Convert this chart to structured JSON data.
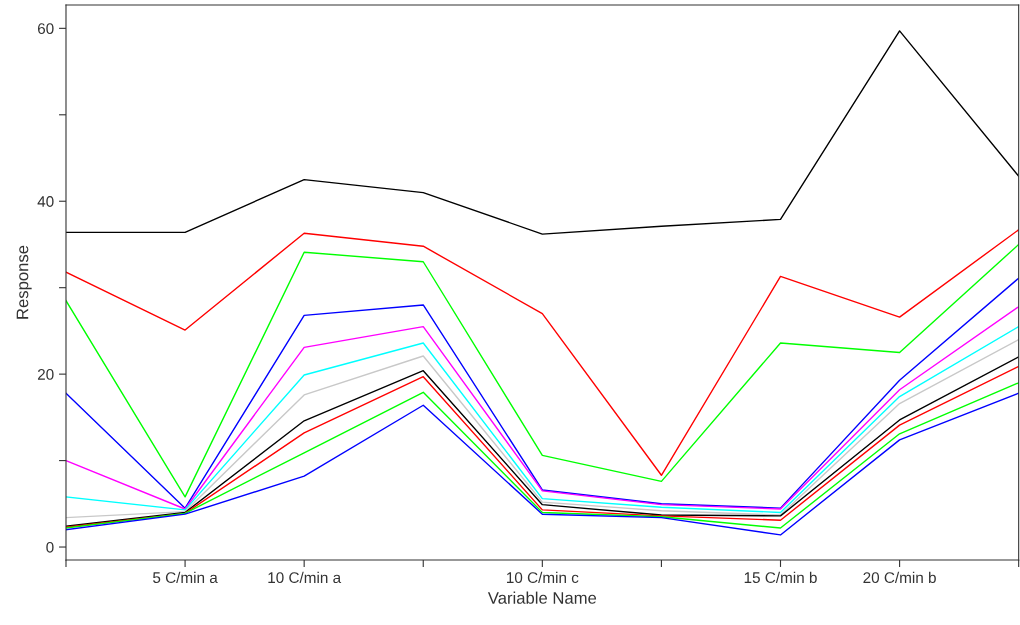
{
  "chart_data": {
    "type": "line",
    "xlabel": "Variable Name",
    "ylabel": "Response",
    "categories": [
      null,
      "5 C/min a",
      "10 C/min a",
      null,
      "10 C/min c",
      null,
      "15 C/min b",
      "20 C/min b",
      null
    ],
    "ylim": [
      -1.5,
      62.7
    ],
    "yticks": [
      0,
      {
        "value": 10,
        "label": null
      },
      20,
      {
        "value": 30,
        "label": null
      },
      40,
      {
        "value": 50,
        "label": null
      },
      60
    ],
    "grid": false,
    "legend": false,
    "marker": "none",
    "line_style": "solid",
    "series": [
      {
        "color": "#000000",
        "values": [
          36.4,
          36.4,
          42.5,
          41.0,
          36.2,
          37.1,
          37.9,
          59.7,
          42.9
        ]
      },
      {
        "color": "#ff0000",
        "values": [
          31.8,
          25.1,
          36.3,
          34.8,
          27.0,
          8.3,
          31.3,
          26.6,
          36.7
        ]
      },
      {
        "color": "#00ff00",
        "values": [
          28.5,
          5.8,
          34.1,
          33.0,
          10.6,
          7.6,
          23.6,
          22.5,
          35.0
        ]
      },
      {
        "color": "#0000ff",
        "values": [
          17.8,
          4.5,
          26.8,
          28.0,
          6.6,
          5.0,
          4.5,
          19.3,
          31.1
        ]
      },
      {
        "color": "#ff00ff",
        "values": [
          10.0,
          4.4,
          23.1,
          25.5,
          6.5,
          4.9,
          4.4,
          18.2,
          27.8
        ]
      },
      {
        "color": "#00ffff",
        "values": [
          5.8,
          4.3,
          19.9,
          23.6,
          5.6,
          4.6,
          4.0,
          17.4,
          25.5
        ]
      },
      {
        "color": "#c8c8c8",
        "values": [
          3.4,
          4.1,
          17.6,
          22.1,
          5.2,
          4.2,
          3.7,
          16.6,
          24.0
        ]
      },
      {
        "color": "#000000",
        "values": [
          2.4,
          4.0,
          14.6,
          20.4,
          4.9,
          3.7,
          3.6,
          14.7,
          22.0
        ]
      },
      {
        "color": "#ff0000",
        "values": [
          2.3,
          3.9,
          13.2,
          19.7,
          4.3,
          3.6,
          3.1,
          14.1,
          20.9
        ]
      },
      {
        "color": "#00ff00",
        "values": [
          2.2,
          3.9,
          10.9,
          17.9,
          4.0,
          3.5,
          2.2,
          13.1,
          19.0
        ]
      },
      {
        "color": "#0000ff",
        "values": [
          2.0,
          3.8,
          8.2,
          16.4,
          3.8,
          3.4,
          1.4,
          12.4,
          17.8
        ]
      }
    ]
  }
}
